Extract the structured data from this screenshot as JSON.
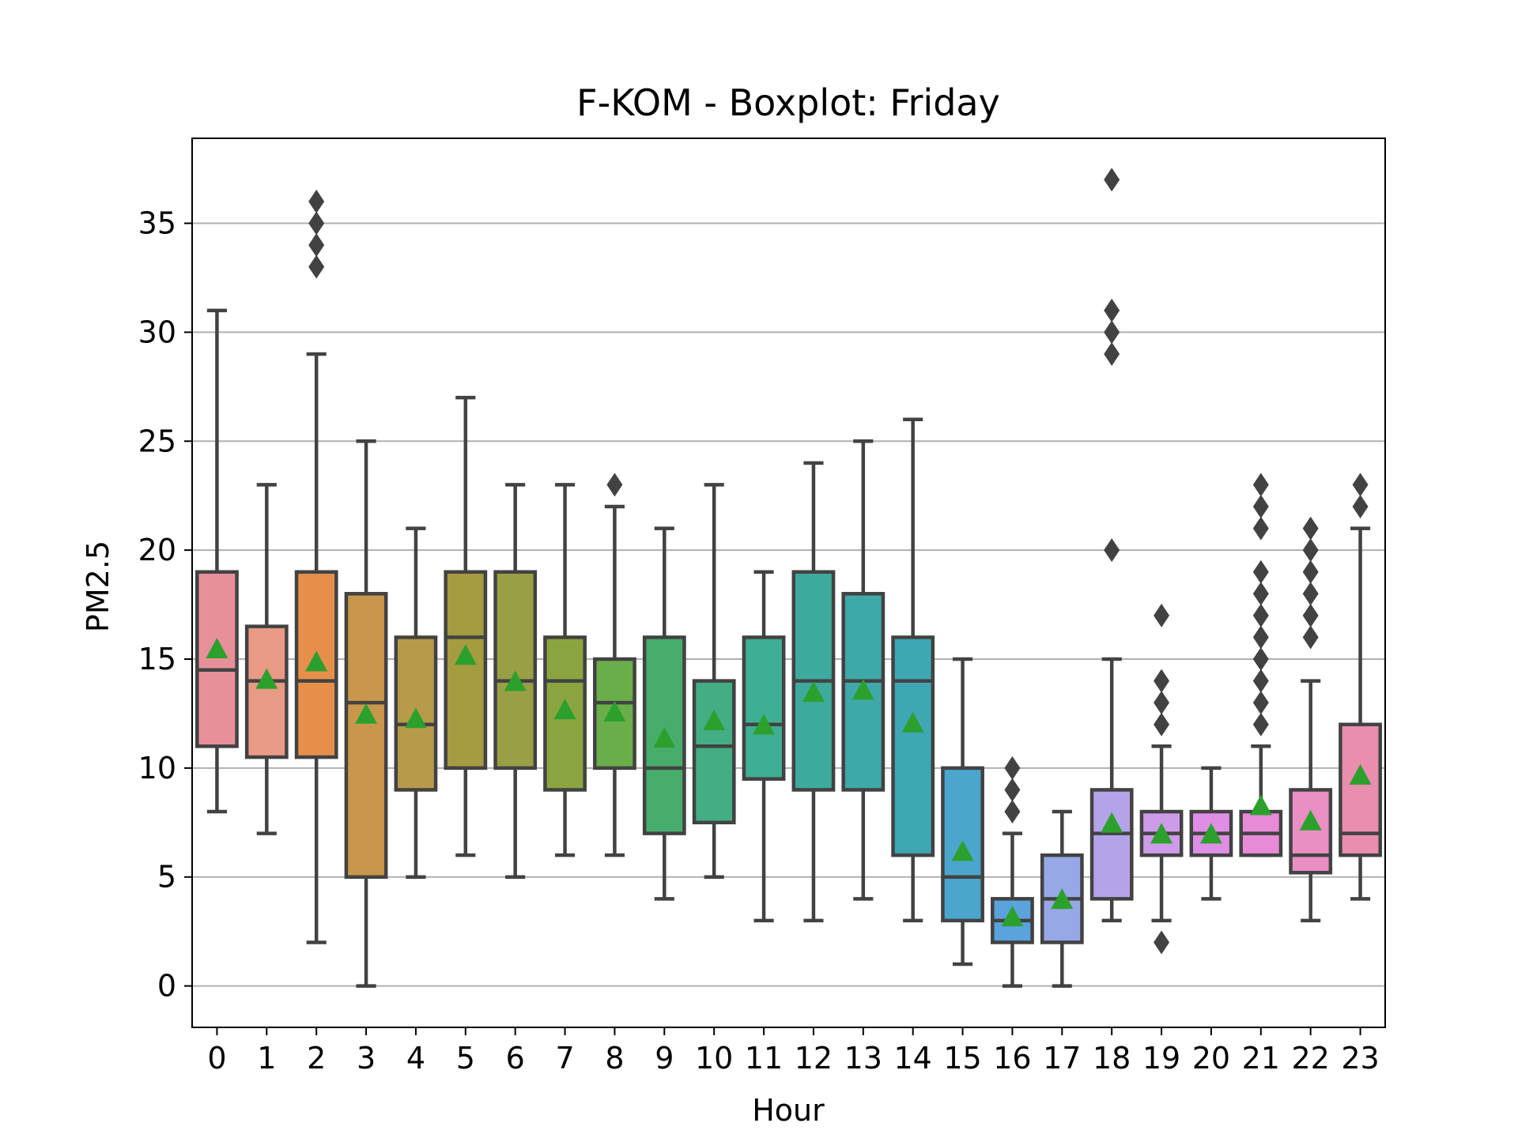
{
  "chart_data": {
    "type": "box",
    "title": "F-KOM - Boxplot: Friday",
    "xlabel": "Hour",
    "ylabel": "PM2.5",
    "ylim": [
      -1.9,
      38.9
    ],
    "yticks": [
      0,
      5,
      10,
      15,
      20,
      25,
      30,
      35
    ],
    "grid": "y",
    "categories": [
      "0",
      "1",
      "2",
      "3",
      "4",
      "5",
      "6",
      "7",
      "8",
      "9",
      "10",
      "11",
      "12",
      "13",
      "14",
      "15",
      "16",
      "17",
      "18",
      "19",
      "20",
      "21",
      "22",
      "23"
    ],
    "boxes": [
      {
        "category": "0",
        "whislo": 8,
        "q1": 11,
        "median": 14.5,
        "q3": 19,
        "whishi": 31,
        "mean": 15.4,
        "fliers": [],
        "color": "#e8909a"
      },
      {
        "category": "1",
        "whislo": 7,
        "q1": 10.5,
        "median": 14,
        "q3": 16.5,
        "whishi": 23,
        "mean": 14,
        "fliers": [],
        "color": "#e89a85"
      },
      {
        "category": "2",
        "whislo": 2,
        "q1": 10.5,
        "median": 14,
        "q3": 19,
        "whishi": 29,
        "mean": 14.8,
        "fliers": [
          33,
          34,
          35,
          36
        ],
        "color": "#e58f4a"
      },
      {
        "category": "3",
        "whislo": 0,
        "q1": 5,
        "median": 13,
        "q3": 18,
        "whishi": 25,
        "mean": 12.4,
        "fliers": [],
        "color": "#c9974c"
      },
      {
        "category": "4",
        "whislo": 5,
        "q1": 9,
        "median": 12,
        "q3": 16,
        "whishi": 21,
        "mean": 12.2,
        "fliers": [],
        "color": "#b89a4b"
      },
      {
        "category": "5",
        "whislo": 6,
        "q1": 10,
        "median": 16,
        "q3": 19,
        "whishi": 27,
        "mean": 15.1,
        "fliers": [],
        "color": "#a59b40"
      },
      {
        "category": "6",
        "whislo": 5,
        "q1": 10,
        "median": 14,
        "q3": 19,
        "whishi": 23,
        "mean": 13.9,
        "fliers": [],
        "color": "#999f44"
      },
      {
        "category": "7",
        "whislo": 6,
        "q1": 9,
        "median": 14,
        "q3": 16,
        "whishi": 23,
        "mean": 12.6,
        "fliers": [],
        "color": "#8aa53f"
      },
      {
        "category": "8",
        "whislo": 6,
        "q1": 10,
        "median": 13,
        "q3": 15,
        "whishi": 22,
        "mean": 12.5,
        "fliers": [
          23
        ],
        "color": "#6aae49"
      },
      {
        "category": "9",
        "whislo": 4,
        "q1": 7,
        "median": 10,
        "q3": 16,
        "whishi": 21,
        "mean": 11.3,
        "fliers": [],
        "color": "#47ad6c"
      },
      {
        "category": "10",
        "whislo": 5,
        "q1": 7.5,
        "median": 11,
        "q3": 14,
        "whishi": 23,
        "mean": 12.1,
        "fliers": [],
        "color": "#43ae84"
      },
      {
        "category": "11",
        "whislo": 3,
        "q1": 9.5,
        "median": 12,
        "q3": 16,
        "whishi": 19,
        "mean": 11.9,
        "fliers": [],
        "color": "#3fae92"
      },
      {
        "category": "12",
        "whislo": 3,
        "q1": 9,
        "median": 14,
        "q3": 19,
        "whishi": 24,
        "mean": 13.4,
        "fliers": [],
        "color": "#3daa9d"
      },
      {
        "category": "13",
        "whislo": 4,
        "q1": 9,
        "median": 14,
        "q3": 18,
        "whishi": 25,
        "mean": 13.5,
        "fliers": [],
        "color": "#3ea9a8"
      },
      {
        "category": "14",
        "whislo": 3,
        "q1": 6,
        "median": 14,
        "q3": 16,
        "whishi": 26,
        "mean": 12,
        "fliers": [],
        "color": "#3fa7b4"
      },
      {
        "category": "15",
        "whislo": 1,
        "q1": 3,
        "median": 5,
        "q3": 10,
        "whishi": 15,
        "mean": 6.1,
        "fliers": [],
        "color": "#4aa6cc"
      },
      {
        "category": "16",
        "whislo": 0,
        "q1": 2,
        "median": 3,
        "q3": 4,
        "whishi": 7,
        "mean": 3.1,
        "fliers": [
          8,
          9,
          10
        ],
        "color": "#5aa3dc"
      },
      {
        "category": "17",
        "whislo": 0,
        "q1": 2,
        "median": 4,
        "q3": 6,
        "whishi": 8,
        "mean": 3.9,
        "fliers": [],
        "color": "#96a9e6"
      },
      {
        "category": "18",
        "whislo": 3,
        "q1": 4,
        "median": 7,
        "q3": 9,
        "whishi": 15,
        "mean": 7.4,
        "fliers": [
          20,
          29,
          30,
          31,
          37
        ],
        "color": "#b5a3ea"
      },
      {
        "category": "19",
        "whislo": 3,
        "q1": 6,
        "median": 7,
        "q3": 8,
        "whishi": 11,
        "mean": 6.9,
        "fliers": [
          2,
          12,
          13,
          14,
          17
        ],
        "color": "#cd9be8"
      },
      {
        "category": "20",
        "whislo": 4,
        "q1": 6,
        "median": 7,
        "q3": 8,
        "whishi": 10,
        "mean": 6.9,
        "fliers": [],
        "color": "#df8ee6"
      },
      {
        "category": "21",
        "whislo": 6,
        "q1": 6,
        "median": 7,
        "q3": 8,
        "whishi": 11,
        "mean": 8.2,
        "fliers": [
          12,
          13,
          14,
          15,
          16,
          17,
          18,
          19,
          21,
          22,
          23
        ],
        "color": "#e78ad8"
      },
      {
        "category": "22",
        "whislo": 3,
        "q1": 5.2,
        "median": 6,
        "q3": 9,
        "whishi": 14,
        "mean": 7.5,
        "fliers": [
          16,
          17,
          18,
          19,
          20,
          21
        ],
        "color": "#e98fc4"
      },
      {
        "category": "23",
        "whislo": 4,
        "q1": 6,
        "median": 7,
        "q3": 12,
        "whishi": 21,
        "mean": 9.6,
        "fliers": [
          22,
          23
        ],
        "color": "#ea8eb0"
      }
    ],
    "line_color": "#424242",
    "mean_marker_color": "#2ca02c",
    "mean_marker_shape": "triangle",
    "flier_marker_shape": "diamond"
  }
}
